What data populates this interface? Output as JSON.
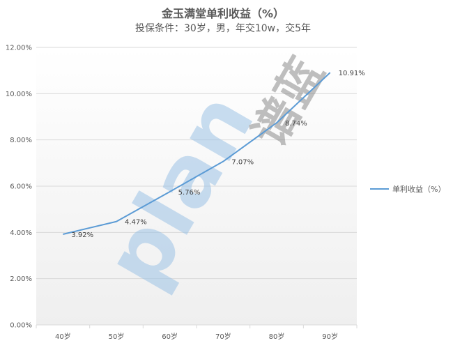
{
  "chart_data": {
    "type": "line",
    "title": "金玉满堂单利收益（%）",
    "subtitle": "投保条件：30岁，男，年交10w，交5年",
    "categories": [
      "40岁",
      "50岁",
      "60岁",
      "70岁",
      "80岁",
      "90岁"
    ],
    "series": [
      {
        "name": "单利收益（%）",
        "values": [
          3.92,
          4.47,
          5.76,
          7.07,
          8.74,
          10.91
        ],
        "labels": [
          "3.92%",
          "4.47%",
          "5.76%",
          "7.07%",
          "8.74%",
          "10.91%"
        ]
      }
    ],
    "ylim": [
      0,
      12
    ],
    "yticks": [
      "0.00%",
      "2.00%",
      "4.00%",
      "6.00%",
      "8.00%",
      "10.00%",
      "12.00%"
    ],
    "grid": true,
    "legend": "right"
  },
  "colors": {
    "line": "#5B9BD5",
    "grid": "#d9d9d9",
    "plot_top": "#ffffff",
    "plot_bottom": "#efefef",
    "watermark_blue": "#9DC3E6",
    "watermark_orange": "#F4B183",
    "watermark_gray": "#8c8c8c"
  },
  "watermark": {
    "text": "plan",
    "cjk": "谱蓝"
  }
}
